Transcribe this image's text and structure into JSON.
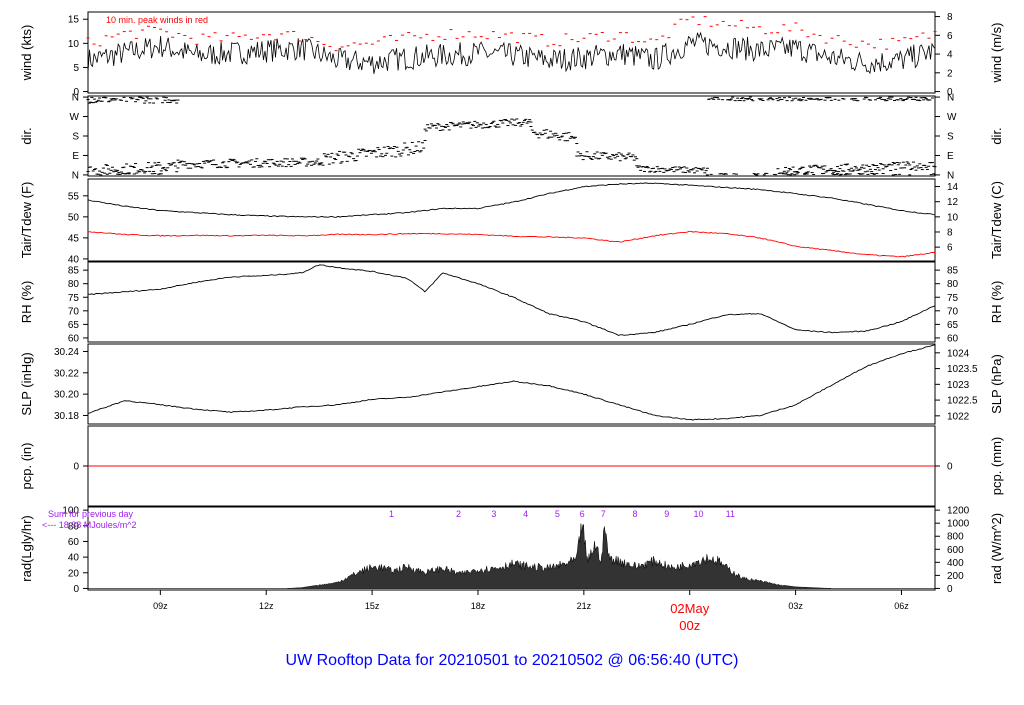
{
  "title": "UW Rooftop Data for 20210501  to  20210502 @ 06:56:40  (UTC)",
  "x_axis": {
    "ticks": [
      "09z",
      "12z",
      "15z",
      "18z",
      "21z",
      "00z",
      "03z",
      "06z"
    ],
    "tick_hours": [
      9,
      12,
      15,
      18,
      21,
      24,
      27,
      30
    ],
    "date_label": "02May",
    "date_sublabel": "00z",
    "range_hours": [
      6.95,
      30.95
    ]
  },
  "colors": {
    "frame": "#000000",
    "peak": "#ff0000",
    "dew": "#ff0000",
    "precip": "#ff0000",
    "annotation": "#a020f0",
    "title": "#0000ff",
    "date": "#ff0000",
    "radiation_fill": "#333333"
  },
  "chart_data": [
    {
      "id": "wind",
      "type": "line",
      "left_label": "wind (kts)",
      "right_label": "wind (m/s)",
      "annotation": "10 min. peak winds in red",
      "left_ticks": [
        "0",
        "5",
        "10",
        "15"
      ],
      "left_tick_values": [
        0,
        5,
        10,
        15
      ],
      "right_ticks": [
        "0",
        "2",
        "4",
        "6",
        "8"
      ],
      "right_tick_values": [
        0,
        2,
        4,
        6,
        8
      ],
      "ylim": [
        -0.3,
        16.5
      ],
      "right_scale": 1.944,
      "series": [
        {
          "role": "speed",
          "color": "#000000",
          "x": [
            6.95,
            8,
            9,
            10,
            11,
            12,
            13,
            14,
            15,
            16,
            17,
            18,
            19,
            20,
            21,
            22,
            23,
            24,
            25,
            26,
            27,
            28,
            29,
            30,
            30.95
          ],
          "y": [
            6.5,
            8,
            9.5,
            7.5,
            8,
            8.5,
            9,
            6.5,
            6,
            7,
            7.5,
            8,
            7.5,
            6.5,
            7,
            8,
            6.5,
            10,
            9.5,
            8.5,
            9,
            7,
            6,
            6.5,
            8.5
          ]
        },
        {
          "role": "peak",
          "color": "#ff0000",
          "x": [
            6.95,
            8,
            9,
            10,
            11,
            12,
            13,
            14,
            15,
            16,
            17,
            18,
            19,
            20,
            21,
            22,
            23,
            24,
            25,
            26,
            27,
            28,
            29,
            30,
            30.95
          ],
          "y": [
            10,
            12,
            12.5,
            11,
            11,
            12,
            11.5,
            9.5,
            10,
            11,
            12,
            12,
            11.5,
            10.5,
            11,
            12,
            10,
            15,
            14,
            13,
            13,
            11,
            10,
            10,
            12
          ]
        }
      ]
    },
    {
      "id": "direction",
      "type": "scatter",
      "left_label": "dir.",
      "right_label": "dir.",
      "left_ticks": [
        "N",
        "E",
        "S",
        "W",
        "N"
      ],
      "left_tick_values": [
        0,
        90,
        180,
        270,
        360
      ],
      "right_ticks": [
        "N",
        "E",
        "S",
        "W",
        "N"
      ],
      "right_tick_values": [
        0,
        90,
        180,
        270,
        360
      ],
      "ylim": [
        -5,
        365
      ],
      "segments": [
        {
          "x": [
            6.95,
            9.5
          ],
          "y_from": 350,
          "y_to": 350,
          "spread": 18
        },
        {
          "x": [
            6.95,
            9.5
          ],
          "y_from": 20,
          "y_to": 40,
          "spread": 25
        },
        {
          "x": [
            9.5,
            13.5
          ],
          "y_from": 50,
          "y_to": 60,
          "spread": 20
        },
        {
          "x": [
            13.5,
            16.5
          ],
          "y_from": 70,
          "y_to": 130,
          "spread": 30
        },
        {
          "x": [
            16.5,
            19.5
          ],
          "y_from": 220,
          "y_to": 245,
          "spread": 18
        },
        {
          "x": [
            19.5,
            20.8
          ],
          "y_from": 200,
          "y_to": 170,
          "spread": 25
        },
        {
          "x": [
            20.8,
            22.5
          ],
          "y_from": 90,
          "y_to": 80,
          "spread": 20
        },
        {
          "x": [
            22.5,
            24.5
          ],
          "y_from": 30,
          "y_to": 20,
          "spread": 15
        },
        {
          "x": [
            24.5,
            30.95
          ],
          "y_from": 355,
          "y_to": 355,
          "spread": 12
        },
        {
          "x": [
            26.5,
            30.95
          ],
          "y_from": 20,
          "y_to": 45,
          "spread": 20
        }
      ]
    },
    {
      "id": "temperature",
      "type": "line",
      "left_label": "Tair/Tdew (F)",
      "right_label": "Tair/Tdew (C)",
      "left_ticks": [
        "40",
        "45",
        "50",
        "55"
      ],
      "left_tick_values": [
        40,
        45,
        50,
        55
      ],
      "right_ticks": [
        "6",
        "8",
        "10",
        "12",
        "14"
      ],
      "right_tick_values": [
        6,
        8,
        10,
        12,
        14
      ],
      "ylim": [
        39.5,
        59
      ],
      "series": [
        {
          "role": "air",
          "color": "#000000",
          "x": [
            6.95,
            8,
            9,
            10,
            11,
            12,
            13,
            14,
            15,
            16,
            17,
            18,
            19,
            20,
            21,
            22,
            23,
            24,
            25,
            26,
            27,
            28,
            29,
            30,
            30.95
          ],
          "y": [
            54,
            52.5,
            51.5,
            51,
            50.5,
            50.2,
            50,
            50,
            50.5,
            51,
            52,
            52,
            53.5,
            55.5,
            57.2,
            57.8,
            58,
            57.5,
            57,
            56.5,
            55.5,
            54.5,
            53,
            51.5,
            50.5
          ]
        },
        {
          "role": "dew",
          "color": "#ff0000",
          "x": [
            6.95,
            8,
            9,
            10,
            11,
            12,
            13,
            14,
            15,
            16,
            17,
            18,
            19,
            20,
            21,
            22,
            23,
            24,
            25,
            26,
            27,
            28,
            29,
            30,
            30.95
          ],
          "y": [
            46.5,
            45.8,
            45.5,
            45.6,
            45.5,
            45.6,
            45.5,
            45.8,
            45.8,
            46,
            46,
            45.8,
            45.4,
            45.2,
            45,
            44,
            45.5,
            46.5,
            46,
            45,
            43,
            42,
            41,
            40.5,
            41.5
          ]
        }
      ]
    },
    {
      "id": "rh",
      "type": "line",
      "left_label": "RH (%)",
      "right_label": "RH (%)",
      "left_ticks": [
        "60",
        "65",
        "70",
        "75",
        "80",
        "85"
      ],
      "left_tick_values": [
        60,
        65,
        70,
        75,
        80,
        85
      ],
      "right_ticks": [
        "60",
        "65",
        "70",
        "75",
        "80",
        "85"
      ],
      "right_tick_values": [
        60,
        65,
        70,
        75,
        80,
        85
      ],
      "ylim": [
        58.5,
        88
      ],
      "series": [
        {
          "role": "rh",
          "color": "#000000",
          "x": [
            6.95,
            8,
            9,
            10,
            11,
            12,
            13,
            13.5,
            14,
            15,
            16,
            16.5,
            17,
            18,
            19,
            20,
            21,
            22,
            23,
            24,
            25,
            26,
            27,
            28,
            29,
            30,
            30.95
          ],
          "y": [
            76,
            77,
            78,
            80.5,
            82.5,
            83,
            84,
            87,
            86,
            84.5,
            82,
            77,
            84,
            80,
            75,
            69,
            66,
            61,
            62,
            65,
            68.5,
            69,
            63,
            62,
            62.5,
            66,
            72
          ]
        }
      ]
    },
    {
      "id": "pressure",
      "type": "line",
      "left_label": "SLP (inHg)",
      "right_label": "SLP (hPa)",
      "left_ticks": [
        "30.18",
        "30.20",
        "30.22",
        "30.24"
      ],
      "left_tick_values": [
        30.18,
        30.2,
        30.22,
        30.24
      ],
      "right_ticks": [
        "1022",
        "1022.5",
        "1023",
        "1023.5",
        "1024"
      ],
      "right_tick_values": [
        1022,
        1022.5,
        1023,
        1023.5,
        1024
      ],
      "ylim": [
        30.172,
        30.247
      ],
      "series": [
        {
          "role": "slp",
          "color": "#000000",
          "x": [
            6.95,
            8,
            9,
            10,
            11,
            12,
            13,
            14,
            15,
            16,
            17,
            18,
            19,
            20,
            21,
            22,
            23,
            24,
            25,
            26,
            27,
            28,
            29,
            30,
            30.95
          ],
          "y": [
            30.182,
            30.194,
            30.19,
            30.186,
            30.183,
            30.185,
            30.188,
            30.19,
            30.195,
            30.197,
            30.202,
            30.207,
            30.212,
            30.208,
            30.2,
            30.19,
            30.18,
            30.176,
            30.177,
            30.18,
            30.19,
            30.208,
            30.226,
            30.238,
            30.246
          ]
        }
      ]
    },
    {
      "id": "precip",
      "type": "line",
      "left_label": "pcp. (in)",
      "right_label": "pcp. (mm)",
      "left_ticks": [
        "0"
      ],
      "left_tick_values": [
        0
      ],
      "right_ticks": [
        "0"
      ],
      "right_tick_values": [
        0
      ],
      "ylim": [
        -1,
        1
      ],
      "series": [
        {
          "role": "pcp",
          "color": "#ff0000",
          "x": [
            6.95,
            30.95
          ],
          "y": [
            0,
            0
          ]
        }
      ]
    },
    {
      "id": "radiation",
      "type": "area",
      "left_label": "rad(Lgly/hr)",
      "right_label": "rad (W/m^2)",
      "left_ticks": [
        "0",
        "20",
        "40",
        "60",
        "80",
        "100"
      ],
      "left_tick_values": [
        0,
        20,
        40,
        60,
        80,
        100
      ],
      "right_ticks": [
        "0",
        "200",
        "400",
        "600",
        "800",
        "1000",
        "1200"
      ],
      "right_tick_values": [
        0,
        200,
        400,
        600,
        800,
        1000,
        1200
      ],
      "ylim": [
        -2,
        104
      ],
      "annotation_line1": "Sum for previous day",
      "annotation_line2": "<--- 18.38 MJoules/m^2",
      "hour_labels": [
        "1",
        "2",
        "3",
        "4",
        "5",
        "6",
        "7",
        "8",
        "9",
        "10",
        "11"
      ],
      "hour_label_x": [
        15.55,
        17.45,
        18.45,
        19.35,
        20.25,
        20.95,
        21.55,
        22.45,
        23.35,
        24.25,
        25.15
      ],
      "series": [
        {
          "role": "radiation",
          "color": "#333333",
          "x": [
            12.6,
            13,
            14,
            14.6,
            14.9,
            15.2,
            15.6,
            16,
            16.5,
            17,
            17.5,
            18,
            18.5,
            19,
            19.5,
            20,
            20.5,
            20.8,
            20.95,
            21.1,
            21.3,
            21.5,
            21.6,
            21.7,
            22,
            22.5,
            23,
            23.5,
            24,
            24.5,
            24.8,
            25,
            25.5,
            26,
            26.5,
            27,
            27.5,
            28
          ],
          "y": [
            0,
            1,
            8,
            22,
            28,
            30,
            24,
            30,
            22,
            28,
            20,
            26,
            28,
            34,
            30,
            28,
            34,
            40,
            92,
            36,
            60,
            40,
            88,
            42,
            38,
            30,
            38,
            28,
            34,
            42,
            38,
            30,
            14,
            10,
            5,
            2,
            1,
            0
          ]
        }
      ]
    }
  ]
}
